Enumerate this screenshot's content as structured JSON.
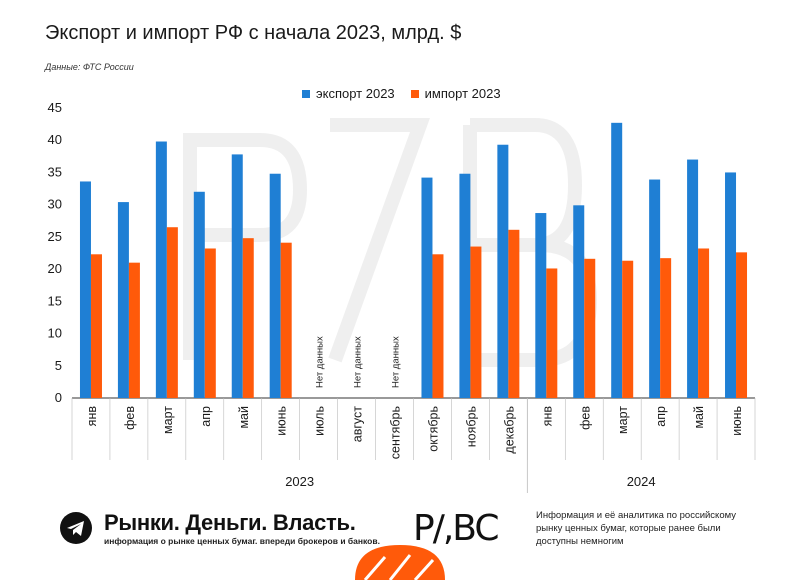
{
  "title": "Экспорт и импорт РФ с начала 2023, млрд. $",
  "source": "Данные: ФТС России",
  "colors": {
    "export": "#1f7fd4",
    "import": "#ff5a0a",
    "axis": "#333333",
    "watermark": "#f1f1f1"
  },
  "chart_data": {
    "type": "bar",
    "categories": [
      "янв",
      "фев",
      "март",
      "апр",
      "май",
      "июнь",
      "июль",
      "август",
      "сентябрь",
      "октябрь",
      "ноябрь",
      "декабрь",
      "янв",
      "фев",
      "март",
      "апр",
      "май",
      "июнь"
    ],
    "groups": [
      {
        "label": "2023",
        "count": 12
      },
      {
        "label": "2024",
        "count": 6
      }
    ],
    "series": [
      {
        "name": "экспорт 2023",
        "values": [
          33.6,
          30.4,
          39.8,
          32.0,
          37.8,
          34.8,
          null,
          null,
          null,
          34.2,
          34.8,
          39.3,
          28.7,
          29.9,
          42.7,
          33.9,
          37.0,
          35.0
        ]
      },
      {
        "name": "импорт 2023",
        "values": [
          22.3,
          21.0,
          26.5,
          23.2,
          24.8,
          24.1,
          null,
          null,
          null,
          22.3,
          23.5,
          26.1,
          20.1,
          21.6,
          21.3,
          21.7,
          23.2,
          22.6
        ]
      }
    ],
    "missing_label": "Нет данных",
    "ylim": [
      0,
      45
    ],
    "yticks": [
      0,
      5,
      10,
      15,
      20,
      25,
      30,
      35,
      40,
      45
    ],
    "legend": "top-center",
    "grid": false
  },
  "footer": {
    "brand": "Рынки. Деньги. Власть.",
    "tagline": "информация о рынке ценных бумаг. впереди брокеров и банков.",
    "logo": "P/,BC",
    "description": "Информация и её аналитика по российскому рынку ценных бумаг, которые ранее были доступны немногим"
  }
}
